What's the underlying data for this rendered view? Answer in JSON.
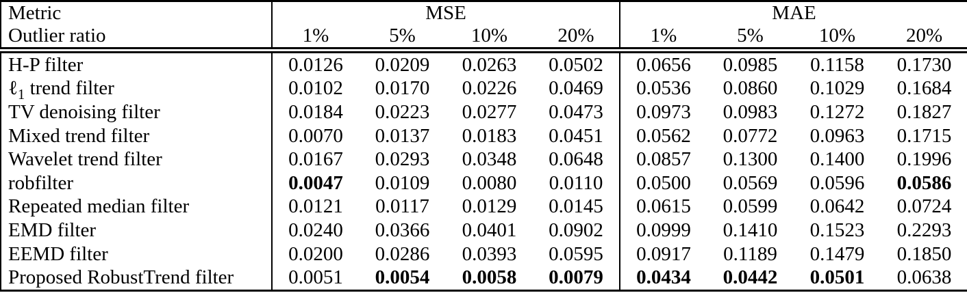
{
  "table": {
    "header": {
      "metric_label": "Metric",
      "outlier_ratio_label": "Outlier ratio",
      "groups": [
        {
          "label": "MSE",
          "ratios": [
            "1%",
            "5%",
            "10%",
            "20%"
          ]
        },
        {
          "label": "MAE",
          "ratios": [
            "1%",
            "5%",
            "10%",
            "20%"
          ]
        }
      ]
    },
    "rows": [
      {
        "label": "H-P filter",
        "mse": [
          "0.0126",
          "0.0209",
          "0.0263",
          "0.0502"
        ],
        "mae": [
          "0.0656",
          "0.0985",
          "0.1158",
          "0.1730"
        ],
        "bold_mse": [],
        "bold_mae": []
      },
      {
        "label": "ℓ1 trend filter",
        "label_parts": {
          "main": "ℓ",
          "sub": "1",
          "rest": " trend filter"
        },
        "mse": [
          "0.0102",
          "0.0170",
          "0.0226",
          "0.0469"
        ],
        "mae": [
          "0.0536",
          "0.0860",
          "0.1029",
          "0.1684"
        ],
        "bold_mse": [],
        "bold_mae": []
      },
      {
        "label": "TV denoising filter",
        "mse": [
          "0.0184",
          "0.0223",
          "0.0277",
          "0.0473"
        ],
        "mae": [
          "0.0973",
          "0.0983",
          "0.1272",
          "0.1827"
        ],
        "bold_mse": [],
        "bold_mae": []
      },
      {
        "label": "Mixed trend filter",
        "mse": [
          "0.0070",
          "0.0137",
          "0.0183",
          "0.0451"
        ],
        "mae": [
          "0.0562",
          "0.0772",
          "0.0963",
          "0.1715"
        ],
        "bold_mse": [],
        "bold_mae": []
      },
      {
        "label": "Wavelet trend filter",
        "mse": [
          "0.0167",
          "0.0293",
          "0.0348",
          "0.0648"
        ],
        "mae": [
          "0.0857",
          "0.1300",
          "0.1400",
          "0.1996"
        ],
        "bold_mse": [],
        "bold_mae": []
      },
      {
        "label": "robfilter",
        "mse": [
          "0.0047",
          "0.0109",
          "0.0080",
          "0.0110"
        ],
        "mae": [
          "0.0500",
          "0.0569",
          "0.0596",
          "0.0586"
        ],
        "bold_mse": [
          0
        ],
        "bold_mae": [
          3
        ]
      },
      {
        "label": "Repeated median filter",
        "mse": [
          "0.0121",
          "0.0117",
          "0.0129",
          "0.0145"
        ],
        "mae": [
          "0.0615",
          "0.0599",
          "0.0642",
          "0.0724"
        ],
        "bold_mse": [],
        "bold_mae": []
      },
      {
        "label": "EMD filter",
        "mse": [
          "0.0240",
          "0.0366",
          "0.0401",
          "0.0902"
        ],
        "mae": [
          "0.0999",
          "0.1410",
          "0.1523",
          "0.2293"
        ],
        "bold_mse": [],
        "bold_mae": []
      },
      {
        "label": "EEMD filter",
        "mse": [
          "0.0200",
          "0.0286",
          "0.0393",
          "0.0595"
        ],
        "mae": [
          "0.0917",
          "0.1189",
          "0.1479",
          "0.1850"
        ],
        "bold_mse": [],
        "bold_mae": []
      },
      {
        "label": "Proposed RobustTrend filter",
        "mse": [
          "0.0051",
          "0.0054",
          "0.0058",
          "0.0079"
        ],
        "mae": [
          "0.0434",
          "0.0442",
          "0.0501",
          "0.0638"
        ],
        "bold_mse": [
          1,
          2,
          3
        ],
        "bold_mae": [
          0,
          1,
          2
        ]
      }
    ]
  }
}
